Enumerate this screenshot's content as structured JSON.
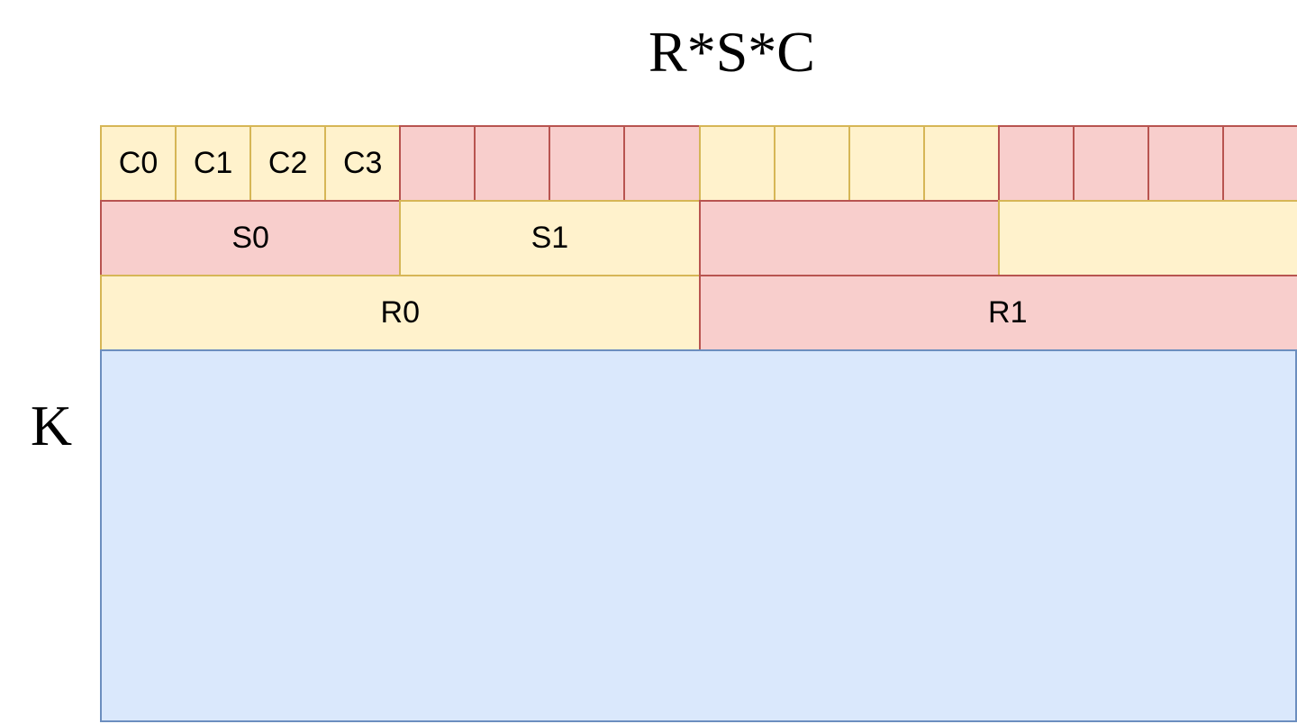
{
  "title": "R*S*C",
  "k_label": "K",
  "colors": {
    "yellow": {
      "fill": "#fff2cc",
      "stroke": "#d6b656"
    },
    "red": {
      "fill": "#f8cecc",
      "stroke": "#b85450"
    },
    "blue": {
      "fill": "#dae8fc",
      "stroke": "#6c8ebf"
    }
  },
  "c_row": [
    {
      "label": "C0",
      "color": "yellow"
    },
    {
      "label": "C1",
      "color": "yellow"
    },
    {
      "label": "C2",
      "color": "yellow"
    },
    {
      "label": "C3",
      "color": "yellow"
    },
    {
      "label": "",
      "color": "red"
    },
    {
      "label": "",
      "color": "red"
    },
    {
      "label": "",
      "color": "red"
    },
    {
      "label": "",
      "color": "red"
    },
    {
      "label": "",
      "color": "yellow"
    },
    {
      "label": "",
      "color": "yellow"
    },
    {
      "label": "",
      "color": "yellow"
    },
    {
      "label": "",
      "color": "yellow"
    },
    {
      "label": "",
      "color": "red"
    },
    {
      "label": "",
      "color": "red"
    },
    {
      "label": "",
      "color": "red"
    },
    {
      "label": "",
      "color": "red"
    }
  ],
  "s_row": [
    {
      "label": "S0",
      "color": "red"
    },
    {
      "label": "S1",
      "color": "yellow"
    },
    {
      "label": "",
      "color": "red"
    },
    {
      "label": "",
      "color": "yellow"
    }
  ],
  "r_row": [
    {
      "label": "R0",
      "color": "yellow"
    },
    {
      "label": "R1",
      "color": "red"
    }
  ],
  "k_block": {
    "color": "blue"
  }
}
